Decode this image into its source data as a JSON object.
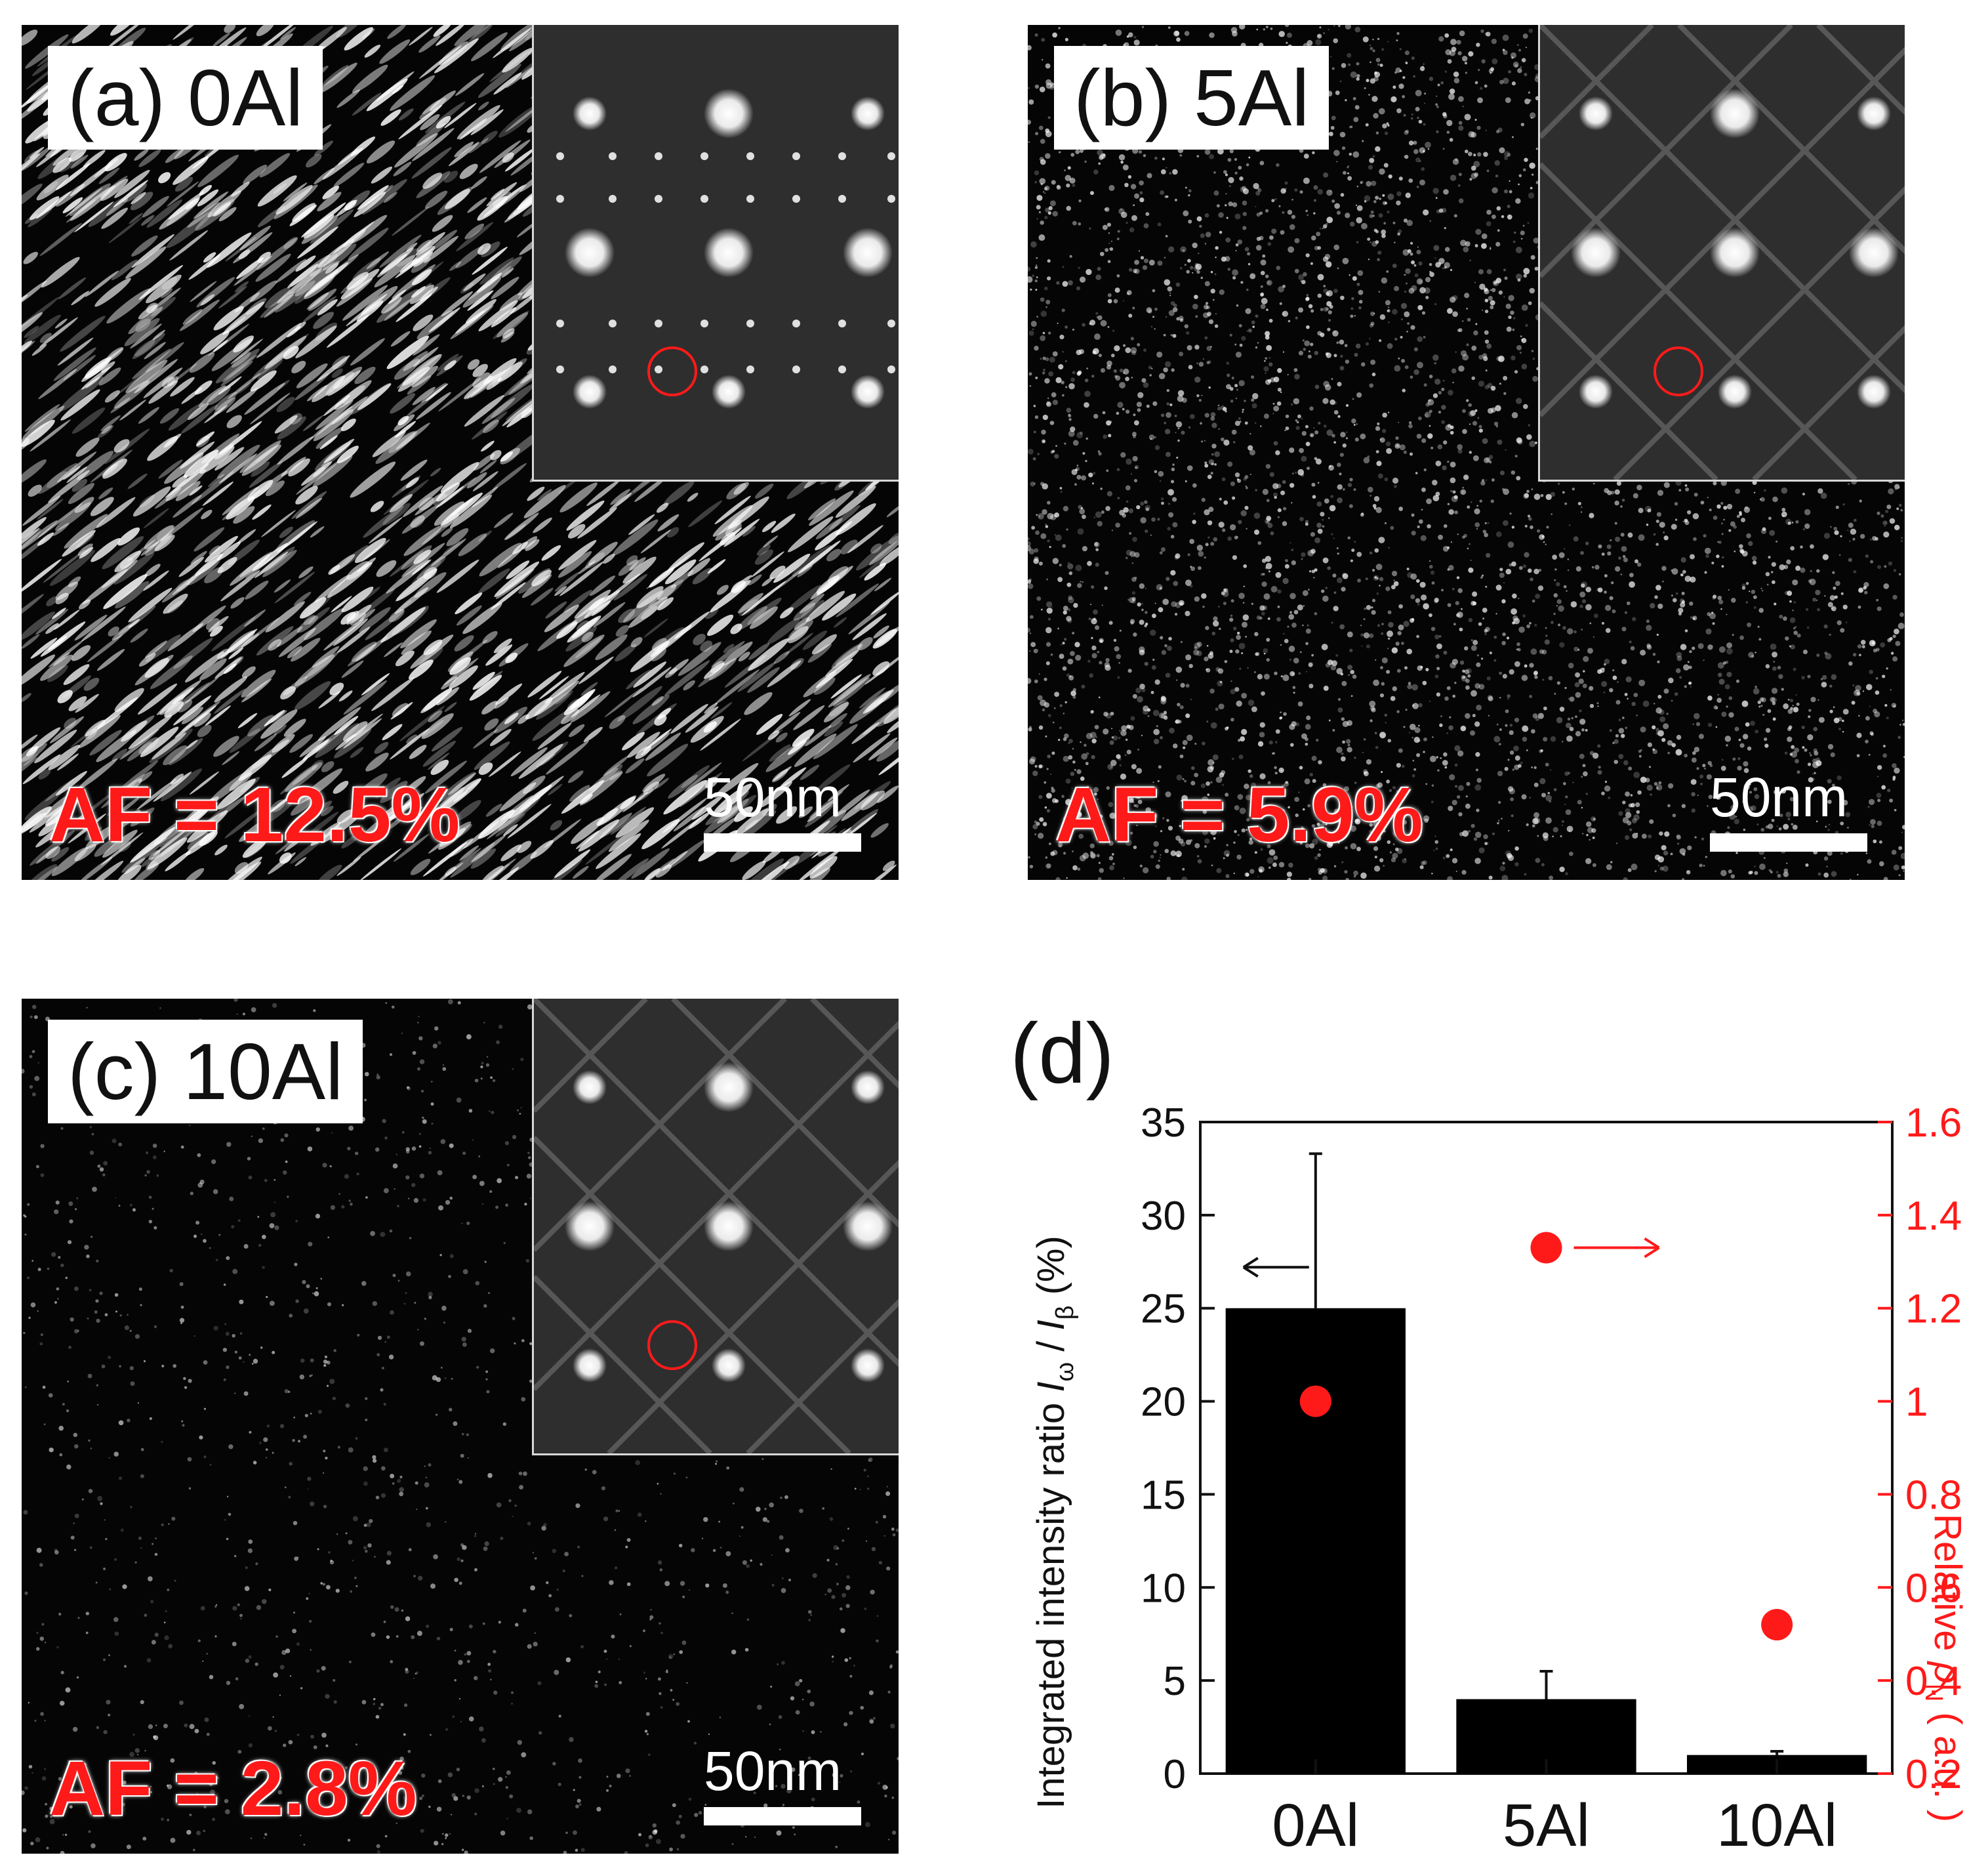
{
  "panels": [
    {
      "label": "(a) 0Al",
      "af": "AF = 12.5%",
      "scale": "50nm"
    },
    {
      "label": "(b) 5Al",
      "af": "AF = 5.9%",
      "scale": "50nm"
    },
    {
      "label": "(c) 10Al",
      "af": "AF = 2.8%",
      "scale": "50nm"
    }
  ],
  "colors": {
    "accent": "#ff1a1a",
    "bar": "#000000",
    "image_bg": "#050505"
  },
  "chart_data": {
    "type": "bar",
    "panel_label": "(d)",
    "categories": [
      "0Al",
      "5Al",
      "10Al"
    ],
    "series": [
      {
        "name": "Integrated intensity ratio I_ω / I_β (%)",
        "axis": "left",
        "kind": "bar",
        "values": [
          25,
          4,
          1
        ],
        "error_upper": [
          33.3,
          5.5,
          1.2
        ]
      },
      {
        "name": "Relative ρ_N (a.u.)",
        "axis": "right",
        "kind": "scatter",
        "values": [
          1.0,
          1.33,
          0.52
        ]
      }
    ],
    "ylabel": "Integrated intensity ratio",
    "ylabel_math": {
      "i1": "I",
      "sub1": "ω",
      "slash": " / ",
      "i2": "I",
      "sub2": "β",
      "unit": " (%)"
    },
    "ylim": [
      0,
      35
    ],
    "yticks": [
      "0",
      "5",
      "10",
      "15",
      "20",
      "25",
      "30",
      "35"
    ],
    "y2label": "Relative ",
    "y2label_math": {
      "sym": "ρ",
      "sub": "N",
      "unit": " ( a.u. )"
    },
    "y2lim": [
      0.2,
      1.6
    ],
    "y2ticks": [
      "0.2",
      "0.4",
      "0.6",
      "0.8",
      "1",
      "1.2",
      "1.4",
      "1.6"
    ],
    "annotations": [
      {
        "text": "arrow pointing to left axis",
        "series": "bars"
      },
      {
        "text": "arrow pointing to right axis",
        "series": "dots"
      }
    ]
  }
}
